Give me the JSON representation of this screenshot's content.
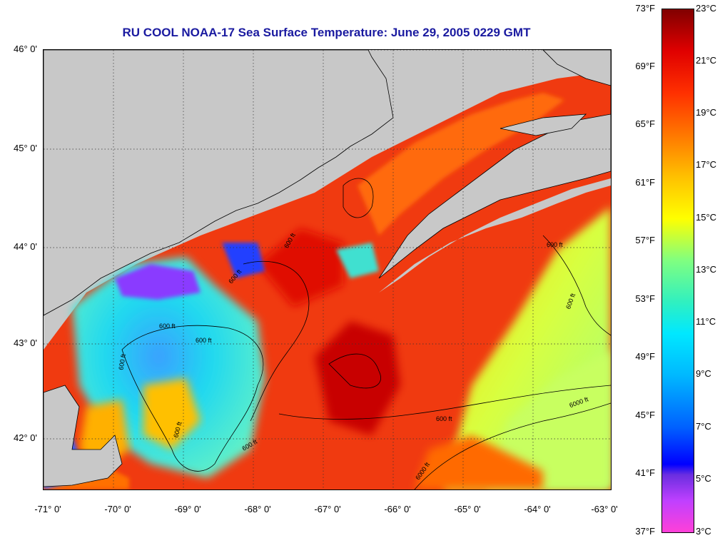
{
  "title": "RU COOL  NOAA-17  Sea Surface Temperature:  June 29, 2005 0229 GMT",
  "lat_labels": [
    "46° 0'",
    "45° 0'",
    "44° 0'",
    "43° 0'",
    "42° 0'"
  ],
  "lon_labels": [
    "-71° 0'",
    "-70° 0'",
    "-69° 0'",
    "-68° 0'",
    "-67° 0'",
    "-66° 0'",
    "-65° 0'",
    "-64° 0'",
    "-63° 0'"
  ],
  "contour_labels": [
    "600 ft",
    "600 ft",
    "600 ft",
    "600 ft",
    "600 ft",
    "600 ft",
    "600 ft",
    "600 ft",
    "600 ft",
    "600 ft",
    "6000 ft",
    "6000 ft"
  ],
  "colorbar": {
    "fahrenheit": [
      "73°F",
      "69°F",
      "65°F",
      "61°F",
      "57°F",
      "53°F",
      "49°F",
      "45°F",
      "41°F",
      "37°F"
    ],
    "celsius": [
      "23°C",
      "21°C",
      "19°C",
      "17°C",
      "15°C",
      "13°C",
      "11°C",
      "9°C",
      "7°C",
      "5°C",
      "3°C"
    ]
  },
  "colors": {
    "land": "#c8c8c8",
    "title": "#1a1aa0",
    "warm": "#e82000",
    "cold": "#00c8f0"
  }
}
